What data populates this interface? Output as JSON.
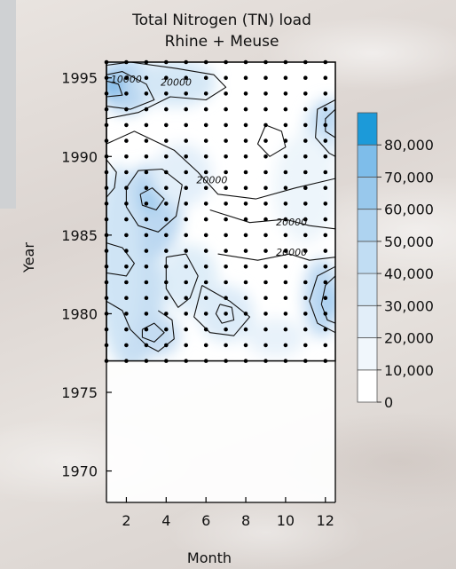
{
  "chart_data": {
    "type": "heatmap",
    "title": "Total Nitrogen (TN) load",
    "subtitle": "Rhine + Meuse",
    "xlabel": "Month",
    "ylabel": "Year",
    "x_ticks": [
      2,
      4,
      6,
      8,
      10,
      12
    ],
    "y_ticks": [
      1970,
      1975,
      1980,
      1985,
      1990,
      1995
    ],
    "xlim": [
      1,
      12.5
    ],
    "ylim": [
      1968,
      1996
    ],
    "data_year_range": [
      1977,
      1996
    ],
    "colorbar": {
      "ticks": [
        "0",
        "10,000",
        "20,000",
        "30,000",
        "40,000",
        "50,000",
        "60,000",
        "70,000",
        "80,000"
      ],
      "colors": [
        "#ffffff",
        "#f1f7fc",
        "#e2eef9",
        "#d2e6f6",
        "#c1ddf3",
        "#aed3f0",
        "#98c8ec",
        "#7ebdea",
        "#1c9ad9"
      ]
    },
    "contour_labels": [
      {
        "text": "10000",
        "x": 2.0,
        "y": 1994.7
      },
      {
        "text": "20000",
        "x": 4.5,
        "y": 1994.5
      },
      {
        "text": "20000",
        "x": 6.3,
        "y": 1988.3
      },
      {
        "text": "20000",
        "x": 10.3,
        "y": 1985.6
      },
      {
        "text": "20000",
        "x": 10.3,
        "y": 1983.7
      }
    ]
  }
}
